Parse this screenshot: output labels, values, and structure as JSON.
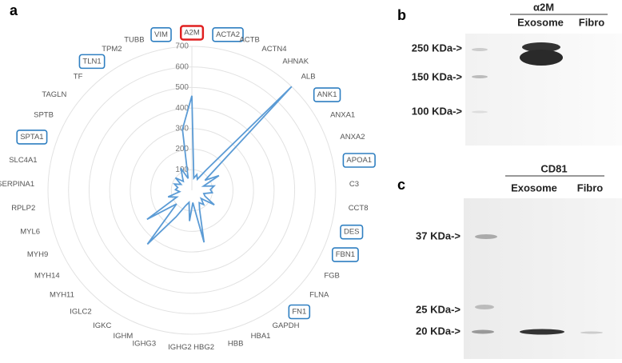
{
  "chart_data": {
    "type": "radar",
    "panel_label": "a",
    "categories": [
      "A2M",
      "ACTA2",
      "ACTB",
      "ACTN4",
      "AHNAK",
      "ALB",
      "ANK1",
      "ANXA1",
      "ANXA2",
      "APOA1",
      "C3",
      "CCT8",
      "DES",
      "FBN1",
      "FGB",
      "FLNA",
      "FN1",
      "GAPDH",
      "HBA1",
      "HBB",
      "HBG2",
      "IGHG2",
      "IGHG3",
      "IGHM",
      "IGKC",
      "IGLC2",
      "MYH11",
      "MYH14",
      "MYH9",
      "MYL6",
      "RPLP2",
      "SERPINA1",
      "SLC4A1",
      "SPTA1",
      "SPTB",
      "TAGLN",
      "TF",
      "TLN1",
      "TPM2",
      "TUBB",
      "VIM"
    ],
    "values": [
      460,
      60,
      80,
      60,
      120,
      700,
      80,
      150,
      60,
      110,
      90,
      100,
      60,
      70,
      130,
      60,
      90,
      70,
      100,
      260,
      60,
      150,
      60,
      80,
      150,
      340,
      100,
      260,
      80,
      120,
      60,
      80,
      70,
      90,
      60,
      100,
      60,
      80,
      120,
      60,
      300
    ],
    "highlight": [
      "red",
      "blue",
      null,
      null,
      null,
      null,
      "blue",
      null,
      null,
      "blue",
      null,
      null,
      "blue",
      "blue",
      null,
      null,
      "blue",
      null,
      null,
      null,
      null,
      null,
      null,
      null,
      null,
      null,
      null,
      null,
      null,
      null,
      null,
      null,
      null,
      "blue",
      null,
      null,
      null,
      "blue",
      null,
      null,
      "blue"
    ],
    "color": "#5b9bd5",
    "rlim": [
      0,
      700
    ],
    "rticks": [
      100,
      200,
      300,
      400,
      500,
      600,
      700
    ]
  },
  "blots": {
    "b": {
      "panel_label": "b",
      "title": "α2M",
      "lanes": [
        "Exosome",
        "Fibro"
      ],
      "markers": [
        "250 KDa->",
        "150 KDa->",
        "100 KDa->"
      ]
    },
    "c": {
      "panel_label": "c",
      "title": "CD81",
      "lanes": [
        "Exosome",
        "Fibro"
      ],
      "markers": [
        "37 KDa->",
        "25 KDa->",
        "20 KDa->"
      ]
    }
  }
}
